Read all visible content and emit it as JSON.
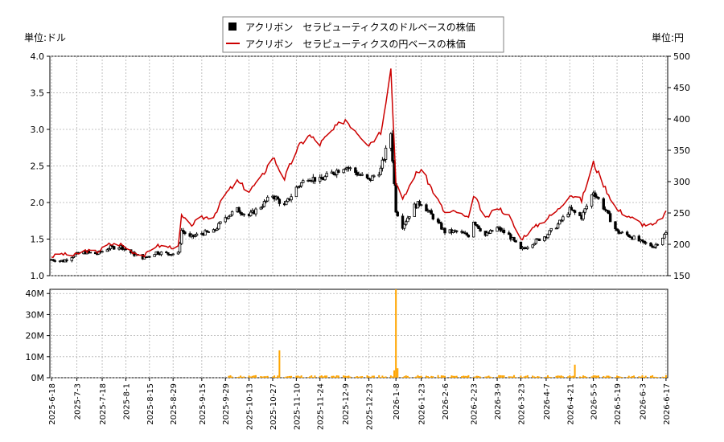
{
  "chart_data": [
    {
      "type": "candlestick",
      "legend": [
        {
          "label": "アクリボン　セラピューティクスのドルベースの株価",
          "color": "#000000",
          "marker": "square"
        },
        {
          "label": "アクリボン　セラピューティクスの円ベースの株価",
          "color": "#cc0000",
          "marker": "line"
        }
      ],
      "unit_left": "単位:ドル",
      "unit_right": "単位:円",
      "ylim_left": [
        1.0,
        4.0
      ],
      "yticks_left": [
        "1.0",
        "1.5",
        "2.0",
        "2.5",
        "3.0",
        "3.5",
        "4.0"
      ],
      "ylim_right": [
        150,
        500
      ],
      "yticks_right": [
        "150",
        "200",
        "250",
        "300",
        "350",
        "400",
        "450",
        "500"
      ],
      "x_range": [
        "2025-06-17",
        "2026-06-18"
      ],
      "xticks": [
        "2025-6-18",
        "2025-7-3",
        "2025-7-18",
        "2025-8-1",
        "2025-8-15",
        "2025-8-29",
        "2025-9-15",
        "2025-9-29",
        "2025-10-13",
        "2025-10-27",
        "2025-11-10",
        "2025-11-24",
        "2025-12-9",
        "2025-12-23",
        "2026-1-8",
        "2026-1-23",
        "2026-2-6",
        "2026-2-23",
        "2026-3-9",
        "2026-3-23",
        "2026-4-7",
        "2026-4-21",
        "2026-5-5",
        "2026-5-19",
        "2026-6-3",
        "2026-6-17"
      ],
      "close_usd_series": [
        [
          "2025-06-18",
          1.22
        ],
        [
          "2025-06-25",
          1.2
        ],
        [
          "2025-07-01",
          1.28
        ],
        [
          "2025-07-08",
          1.32
        ],
        [
          "2025-07-15",
          1.3
        ],
        [
          "2025-07-22",
          1.38
        ],
        [
          "2025-07-29",
          1.4
        ],
        [
          "2025-08-05",
          1.3
        ],
        [
          "2025-08-12",
          1.24
        ],
        [
          "2025-08-19",
          1.32
        ],
        [
          "2025-08-26",
          1.3
        ],
        [
          "2025-09-01",
          1.3
        ],
        [
          "2025-09-03",
          1.62
        ],
        [
          "2025-09-08",
          1.52
        ],
        [
          "2025-09-15",
          1.58
        ],
        [
          "2025-09-22",
          1.6
        ],
        [
          "2025-09-29",
          1.8
        ],
        [
          "2025-10-06",
          1.9
        ],
        [
          "2025-10-13",
          1.82
        ],
        [
          "2025-10-20",
          1.95
        ],
        [
          "2025-10-27",
          2.1
        ],
        [
          "2025-11-03",
          1.95
        ],
        [
          "2025-11-10",
          2.2
        ],
        [
          "2025-11-17",
          2.35
        ],
        [
          "2025-11-24",
          2.3
        ],
        [
          "2025-12-01",
          2.4
        ],
        [
          "2025-12-09",
          2.5
        ],
        [
          "2025-12-16",
          2.4
        ],
        [
          "2025-12-23",
          2.3
        ],
        [
          "2025-12-30",
          2.45
        ],
        [
          "2026-01-05",
          2.95
        ],
        [
          "2026-01-08",
          1.9
        ],
        [
          "2026-01-12",
          1.68
        ],
        [
          "2026-01-19",
          1.95
        ],
        [
          "2026-01-23",
          2.0
        ],
        [
          "2026-01-30",
          1.8
        ],
        [
          "2026-02-06",
          1.6
        ],
        [
          "2026-02-13",
          1.6
        ],
        [
          "2026-02-20",
          1.55
        ],
        [
          "2026-02-23",
          1.75
        ],
        [
          "2026-03-02",
          1.55
        ],
        [
          "2026-03-09",
          1.65
        ],
        [
          "2026-03-16",
          1.55
        ],
        [
          "2026-03-23",
          1.35
        ],
        [
          "2026-03-30",
          1.45
        ],
        [
          "2026-04-07",
          1.55
        ],
        [
          "2026-04-14",
          1.7
        ],
        [
          "2026-04-21",
          1.9
        ],
        [
          "2026-04-28",
          1.8
        ],
        [
          "2026-05-05",
          2.15
        ],
        [
          "2026-05-12",
          1.9
        ],
        [
          "2026-05-19",
          1.6
        ],
        [
          "2026-05-26",
          1.55
        ],
        [
          "2026-06-03",
          1.45
        ],
        [
          "2026-06-10",
          1.4
        ],
        [
          "2026-06-17",
          1.58
        ]
      ],
      "close_jpy_series": [
        [
          "2025-06-18",
          180
        ],
        [
          "2025-06-23",
          185
        ],
        [
          "2025-07-01",
          182
        ],
        [
          "2025-07-08",
          190
        ],
        [
          "2025-07-15",
          188
        ],
        [
          "2025-07-22",
          200
        ],
        [
          "2025-07-29",
          200
        ],
        [
          "2025-08-05",
          188
        ],
        [
          "2025-08-12",
          182
        ],
        [
          "2025-08-19",
          198
        ],
        [
          "2025-08-26",
          196
        ],
        [
          "2025-09-01",
          195
        ],
        [
          "2025-09-03",
          245
        ],
        [
          "2025-09-08",
          230
        ],
        [
          "2025-09-15",
          242
        ],
        [
          "2025-09-22",
          245
        ],
        [
          "2025-09-29",
          280
        ],
        [
          "2025-10-06",
          300
        ],
        [
          "2025-10-13",
          285
        ],
        [
          "2025-10-20",
          305
        ],
        [
          "2025-10-27",
          340
        ],
        [
          "2025-11-03",
          305
        ],
        [
          "2025-11-10",
          350
        ],
        [
          "2025-11-17",
          375
        ],
        [
          "2025-11-24",
          360
        ],
        [
          "2025-12-01",
          380
        ],
        [
          "2025-12-09",
          400
        ],
        [
          "2025-12-16",
          380
        ],
        [
          "2025-12-23",
          360
        ],
        [
          "2025-12-30",
          380
        ],
        [
          "2026-01-05",
          480
        ],
        [
          "2026-01-08",
          300
        ],
        [
          "2026-01-12",
          270
        ],
        [
          "2026-01-19",
          310
        ],
        [
          "2026-01-23",
          320
        ],
        [
          "2026-01-30",
          285
        ],
        [
          "2026-02-06",
          250
        ],
        [
          "2026-02-13",
          252
        ],
        [
          "2026-02-20",
          240
        ],
        [
          "2026-02-23",
          280
        ],
        [
          "2026-03-02",
          240
        ],
        [
          "2026-03-09",
          260
        ],
        [
          "2026-03-16",
          245
        ],
        [
          "2026-03-23",
          208
        ],
        [
          "2026-03-30",
          225
        ],
        [
          "2026-04-07",
          240
        ],
        [
          "2026-04-14",
          255
        ],
        [
          "2026-04-21",
          280
        ],
        [
          "2026-04-28",
          270
        ],
        [
          "2026-05-05",
          330
        ],
        [
          "2026-05-12",
          290
        ],
        [
          "2026-05-19",
          255
        ],
        [
          "2026-05-26",
          245
        ],
        [
          "2026-06-03",
          232
        ],
        [
          "2026-06-10",
          230
        ],
        [
          "2026-06-17",
          250
        ]
      ]
    },
    {
      "type": "bar",
      "name": "volume",
      "color": "#ffa500",
      "ylim": [
        0,
        42000000
      ],
      "yticks": [
        "0M",
        "10M",
        "20M",
        "30M",
        "40M"
      ],
      "spikes": [
        [
          "2025-10-31",
          13000000
        ],
        [
          "2026-01-07",
          3500000
        ],
        [
          "2026-01-08",
          42000000
        ],
        [
          "2026-01-09",
          4500000
        ],
        [
          "2026-04-24",
          6200000
        ]
      ],
      "baseline_volume": 500000
    }
  ]
}
